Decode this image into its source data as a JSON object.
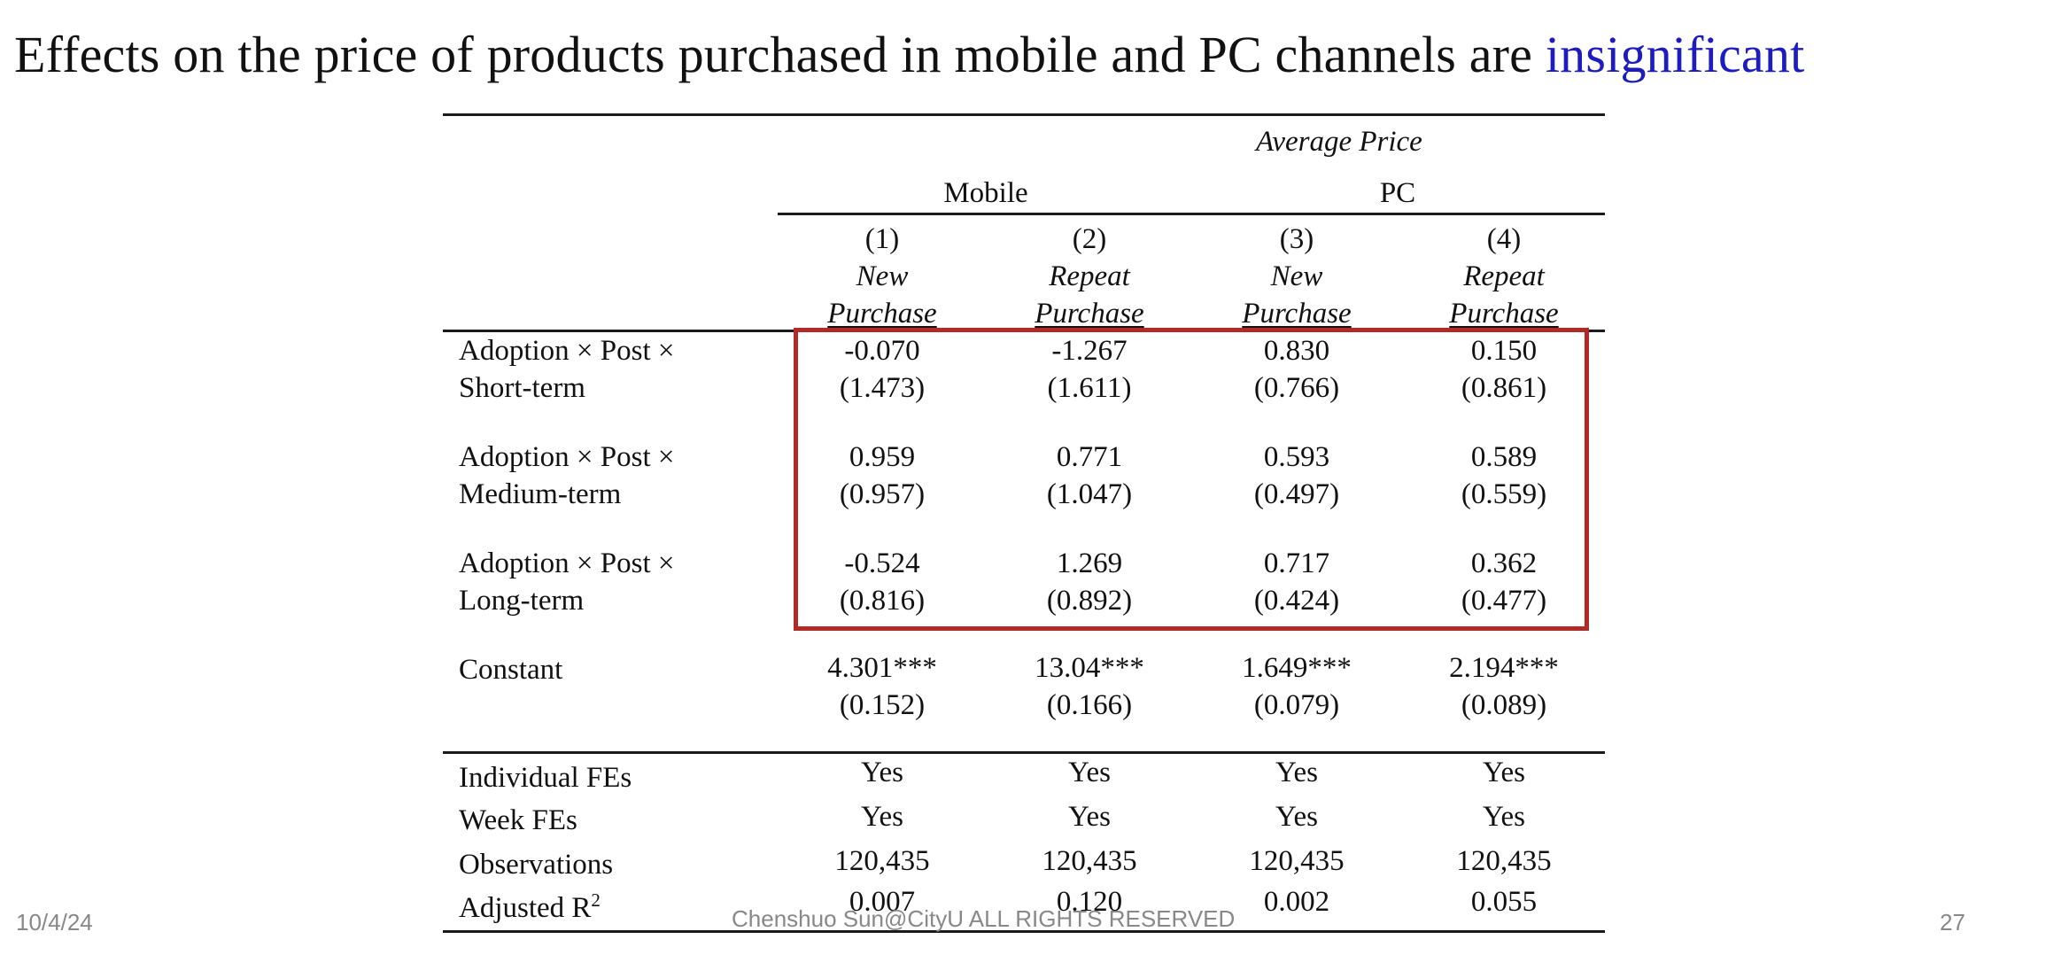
{
  "title": {
    "main": "Effects on the price of products purchased in mobile and PC channels are",
    "emphasis": "insignificant"
  },
  "table": {
    "supertitle": "Average Price",
    "groups": [
      "Mobile",
      "PC"
    ],
    "columns": [
      {
        "num": "(1)",
        "line1": "New",
        "line2": "Purchase"
      },
      {
        "num": "(2)",
        "line1": "Repeat",
        "line2": "Purchase"
      },
      {
        "num": "(3)",
        "line1": "New",
        "line2": "Purchase"
      },
      {
        "num": "(4)",
        "line1": "Repeat",
        "line2": "Purchase"
      }
    ],
    "rows": [
      {
        "label1": "Adoption × Post ×",
        "label2": "Short-term",
        "coef": [
          "-0.070",
          "-1.267",
          "0.830",
          "0.150"
        ],
        "se": [
          "(1.473)",
          "(1.611)",
          "(0.766)",
          "(0.861)"
        ]
      },
      {
        "label1": "Adoption × Post ×",
        "label2": "Medium-term",
        "coef": [
          "0.959",
          "0.771",
          "0.593",
          "0.589"
        ],
        "se": [
          "(0.957)",
          "(1.047)",
          "(0.497)",
          "(0.559)"
        ]
      },
      {
        "label1": "Adoption × Post ×",
        "label2": "Long-term",
        "coef": [
          "-0.524",
          "1.269",
          "0.717",
          "0.362"
        ],
        "se": [
          "(0.816)",
          "(0.892)",
          "(0.424)",
          "(0.477)"
        ]
      },
      {
        "label1": "Constant",
        "label2": "",
        "coef": [
          "4.301***",
          "13.04***",
          "1.649***",
          "2.194***"
        ],
        "se": [
          "(0.152)",
          "(0.166)",
          "(0.079)",
          "(0.089)"
        ]
      }
    ],
    "stats": [
      {
        "label": "Individual FEs",
        "values": [
          "Yes",
          "Yes",
          "Yes",
          "Yes"
        ]
      },
      {
        "label": "Week FEs",
        "values": [
          "Yes",
          "Yes",
          "Yes",
          "Yes"
        ]
      },
      {
        "label": "Observations",
        "values": [
          "120,435",
          "120,435",
          "120,435",
          "120,435"
        ]
      },
      {
        "label": "Adjusted R",
        "sup": "2",
        "values": [
          "0.007",
          "0.120",
          "0.002",
          "0.055"
        ]
      }
    ]
  },
  "footer": {
    "date": "10/4/24",
    "copyright": "Chenshuo Sun@CityU ALL RIGHTS RESERVED",
    "page": "27"
  }
}
